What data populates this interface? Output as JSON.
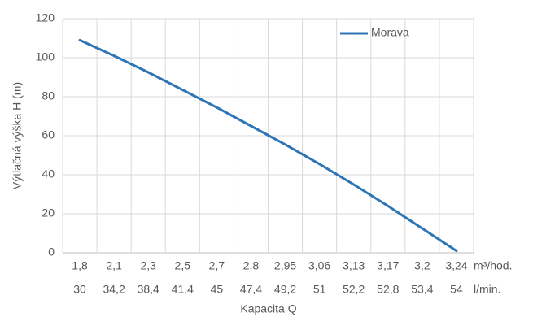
{
  "chart_data": {
    "type": "line",
    "ylabel": "Výtlačná výška H (m)",
    "xlabel": "Kapacita Q",
    "categories": [
      "1,8",
      "2,1",
      "2,3",
      "2,5",
      "2,7",
      "2,8",
      "2,95",
      "3,06",
      "3,13",
      "3,17",
      "3,2",
      "3,24"
    ],
    "categories_secondary": [
      "30",
      "34,2",
      "38,4",
      "41,4",
      "45",
      "47,4",
      "49,2",
      "51",
      "52,2",
      "52,8",
      "53,4",
      "54"
    ],
    "x_units": [
      "m³/hod.",
      "l/min."
    ],
    "series": [
      {
        "name": "Morava",
        "color": "#2e75b6",
        "values": [
          109,
          101,
          92.5,
          83.5,
          74.5,
          65,
          55.5,
          45.5,
          35,
          24,
          12.5,
          1
        ]
      }
    ],
    "ylim": [
      0,
      120
    ],
    "yticks": [
      0,
      20,
      40,
      60,
      80,
      100,
      120
    ],
    "grid": true,
    "legend": "top-right"
  }
}
